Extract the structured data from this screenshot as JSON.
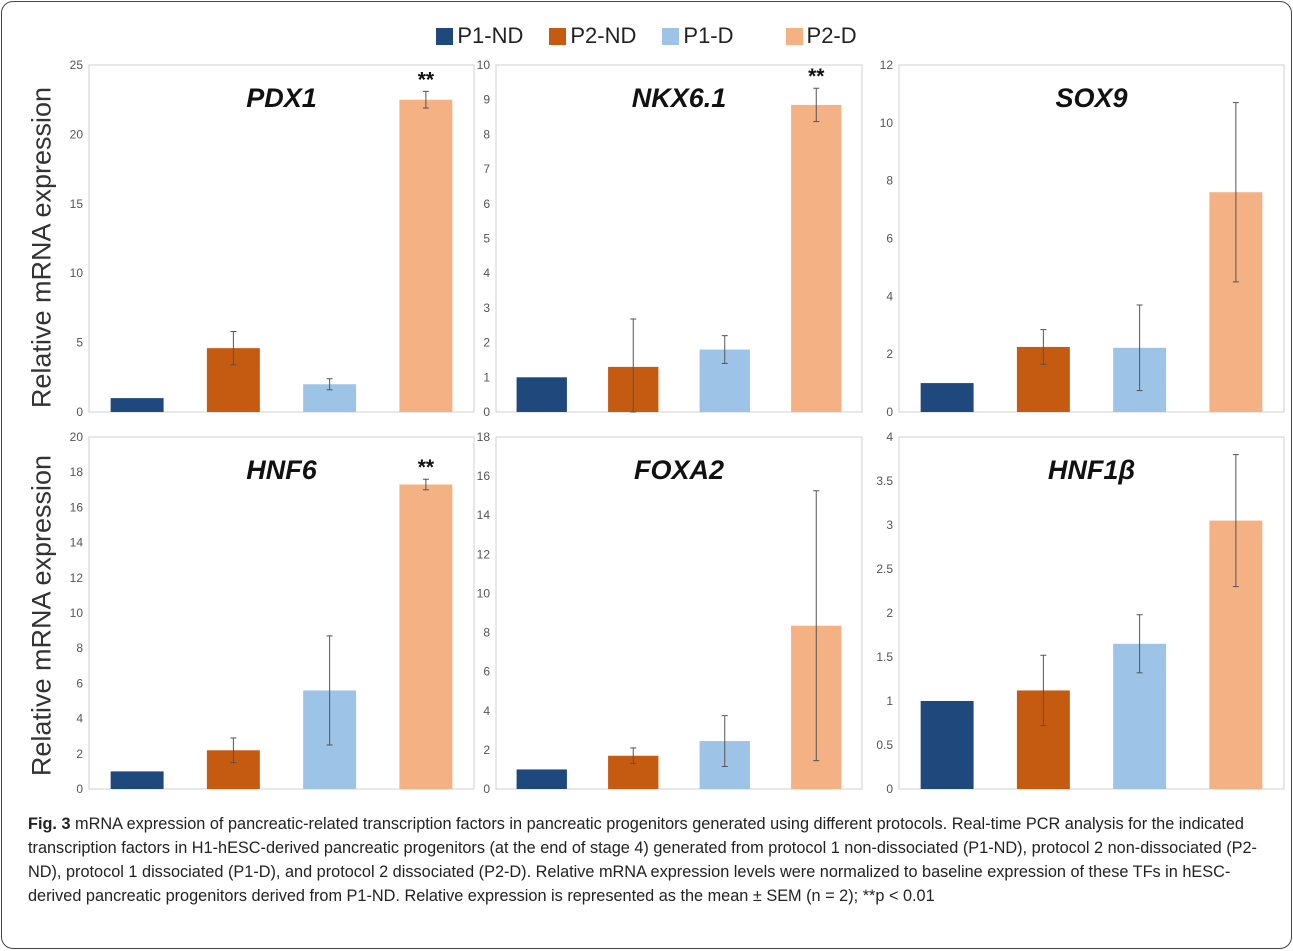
{
  "legend": {
    "items": [
      {
        "label": "P1-ND",
        "color": "#1f497d"
      },
      {
        "label": "P2-ND",
        "color": "#c55a11"
      },
      {
        "label": "P1-D",
        "color": "#9dc3e6"
      },
      {
        "label": "P2-D",
        "color": "#f4b183"
      }
    ]
  },
  "ylabels": [
    "Relative mRNA expression",
    "Relative mRNA expression"
  ],
  "caption": {
    "fig_label": "Fig. 3",
    "text": " mRNA expression of pancreatic-related transcription factors in pancreatic progenitors generated using different protocols. Real-time PCR analysis for the indicated transcription factors in H1-hESC-derived pancreatic progenitors (at the end of stage 4) generated from protocol 1 non-dissociated (P1-ND), protocol 2 non-dissociated (P2-ND), protocol 1 dissociated (P1-D), and protocol 2 dissociated (P2-D). Relative mRNA expression levels were normalized to baseline expression of these TFs in hESC-derived pancreatic progenitors derived from P1-ND. Relative expression is represented as the mean ± SEM (n = 2); **p < 0.01"
  },
  "chart_data": [
    {
      "type": "bar",
      "title": "PDX1",
      "categories": [
        "P1-ND",
        "P2-ND",
        "P1-D",
        "P2-D"
      ],
      "values": [
        1,
        4.6,
        2.0,
        22.5
      ],
      "errors": [
        0,
        1.2,
        0.4,
        0.6
      ],
      "significance": [
        "",
        "",
        "",
        "**"
      ],
      "ylim": [
        0,
        25
      ],
      "yticks": [
        0,
        5,
        10,
        15,
        20,
        25
      ]
    },
    {
      "type": "bar",
      "title": "NKX6.1",
      "categories": [
        "P1-ND",
        "P2-ND",
        "P1-D",
        "P2-D"
      ],
      "values": [
        1,
        1.3,
        1.8,
        8.85
      ],
      "errors": [
        0,
        1.38,
        0.4,
        0.48
      ],
      "significance": [
        "",
        "",
        "",
        "**"
      ],
      "ylim": [
        0,
        10
      ],
      "yticks": [
        0,
        1,
        2,
        3,
        4,
        5,
        6,
        7,
        8,
        9,
        10
      ]
    },
    {
      "type": "bar",
      "title": "SOX9",
      "categories": [
        "P1-ND",
        "P2-ND",
        "P1-D",
        "P2-D"
      ],
      "values": [
        1,
        2.25,
        2.22,
        7.6
      ],
      "errors": [
        0,
        0.6,
        1.48,
        3.1
      ],
      "significance": [
        "",
        "",
        "",
        ""
      ],
      "ylim": [
        0,
        12
      ],
      "yticks": [
        0,
        2,
        4,
        6,
        8,
        10,
        12
      ]
    },
    {
      "type": "bar",
      "title": "HNF6",
      "categories": [
        "P1-ND",
        "P2-ND",
        "P1-D",
        "P2-D"
      ],
      "values": [
        1,
        2.2,
        5.6,
        17.3
      ],
      "errors": [
        0,
        0.7,
        3.1,
        0.3
      ],
      "significance": [
        "",
        "",
        "",
        "**"
      ],
      "ylim": [
        0,
        20
      ],
      "yticks": [
        0,
        2,
        4,
        6,
        8,
        10,
        12,
        14,
        16,
        18,
        20
      ]
    },
    {
      "type": "bar",
      "title": "FOXA2",
      "categories": [
        "P1-ND",
        "P2-ND",
        "P1-D",
        "P2-D"
      ],
      "values": [
        1,
        1.7,
        2.45,
        8.35
      ],
      "errors": [
        0,
        0.4,
        1.3,
        6.9
      ],
      "significance": [
        "",
        "",
        "",
        ""
      ],
      "ylim": [
        0,
        18
      ],
      "yticks": [
        0,
        2,
        4,
        6,
        8,
        10,
        12,
        14,
        16,
        18
      ]
    },
    {
      "type": "bar",
      "title": "HNF1β",
      "categories": [
        "P1-ND",
        "P2-ND",
        "P1-D",
        "P2-D"
      ],
      "values": [
        1,
        1.12,
        1.65,
        3.05
      ],
      "errors": [
        0,
        0.4,
        0.33,
        0.75
      ],
      "significance": [
        "",
        "",
        "",
        ""
      ],
      "ylim": [
        0,
        4
      ],
      "yticks": [
        0,
        0.5,
        1,
        1.5,
        2,
        2.5,
        3,
        3.5,
        4
      ]
    }
  ]
}
